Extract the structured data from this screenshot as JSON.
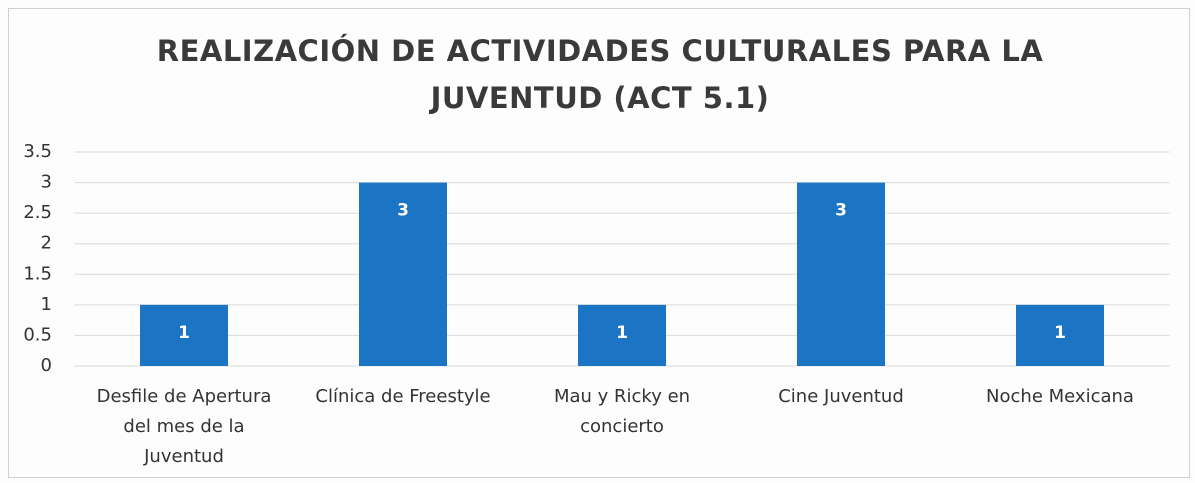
{
  "chart_data": {
    "type": "bar",
    "title": "REALIZACIÓN DE ACTIVIDADES CULTURALES PARA LA JUVENTUD (ACT 5.1)",
    "categories": [
      "Desfile de Apertura del mes de la Juventud",
      "Clínica de Freestyle",
      "Mau y Ricky en concierto",
      "Cine Juventud",
      "Noche Mexicana"
    ],
    "values": [
      1,
      3,
      1,
      3,
      1
    ],
    "color": "#1b75c4",
    "ylim": [
      0,
      3.5
    ],
    "yticks": [
      0,
      0.5,
      1,
      1.5,
      2,
      2.5,
      3,
      3.5
    ],
    "grid": true
  }
}
